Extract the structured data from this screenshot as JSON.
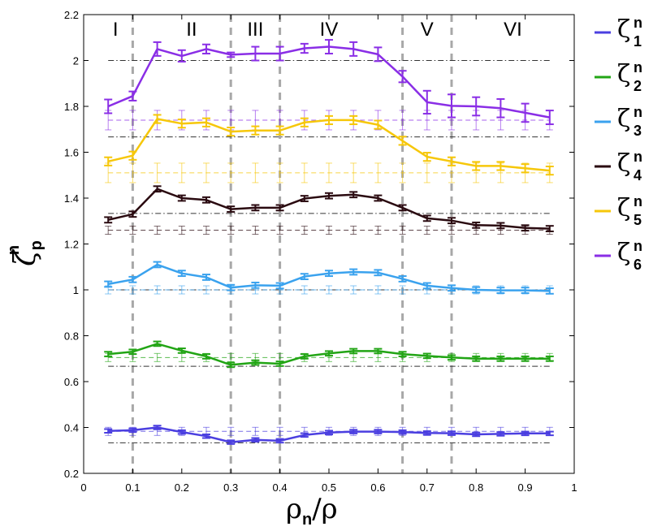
{
  "chart_data": {
    "type": "line",
    "xlabel_main": "ρ",
    "xlabel_sub": "n",
    "xlabel_tail": "/ρ",
    "ylabel_main": "ζ",
    "ylabel_sup": "n",
    "ylabel_sub": "p",
    "xlim": [
      0,
      1
    ],
    "ylim": [
      0.2,
      2.2
    ],
    "x_ticks": [
      0,
      0.1,
      0.2,
      0.3,
      0.4,
      0.5,
      0.6,
      0.7,
      0.8,
      0.9,
      1
    ],
    "x_tick_labels": [
      "0",
      "0.1",
      "0.2",
      "0.3",
      "0.4",
      "0.5",
      "0.6",
      "0.7",
      "0.8",
      "0.9",
      "1"
    ],
    "y_ticks": [
      0.2,
      0.4,
      0.6,
      0.8,
      1.0,
      1.2,
      1.4,
      1.6,
      1.8,
      2.0,
      2.2
    ],
    "y_tick_labels": [
      "0.2",
      "0.4",
      "0.6",
      "0.8",
      "1",
      "1.2",
      "1.4",
      "1.6",
      "1.8",
      "2",
      "2.2"
    ],
    "region_boundaries": [
      0.1,
      0.3,
      0.4,
      0.65,
      0.75
    ],
    "regions": [
      {
        "label": "I",
        "x": 0.065
      },
      {
        "label": "II",
        "x": 0.22
      },
      {
        "label": "III",
        "x": 0.35
      },
      {
        "label": "IV",
        "x": 0.5
      },
      {
        "label": "V",
        "x": 0.7
      },
      {
        "label": "VI",
        "x": 0.875
      }
    ],
    "reference_lines": [
      0.3333,
      0.6667,
      1.0,
      1.3333,
      1.6667,
      2.0
    ],
    "x": [
      0.05,
      0.1,
      0.15,
      0.2,
      0.25,
      0.3,
      0.35,
      0.4,
      0.45,
      0.5,
      0.55,
      0.6,
      0.65,
      0.7,
      0.75,
      0.8,
      0.85,
      0.9,
      0.95
    ],
    "series": [
      {
        "name": "ζ1n",
        "legend_sub": "1",
        "color": "#4b3fe0",
        "values": [
          0.385,
          0.388,
          0.4,
          0.38,
          0.362,
          0.336,
          0.346,
          0.342,
          0.367,
          0.378,
          0.382,
          0.382,
          0.38,
          0.376,
          0.375,
          0.37,
          0.372,
          0.374,
          0.374
        ],
        "errors": [
          0.008,
          0.008,
          0.008,
          0.008,
          0.008,
          0.008,
          0.008,
          0.008,
          0.008,
          0.008,
          0.008,
          0.008,
          0.008,
          0.008,
          0.008,
          0.008,
          0.008,
          0.008,
          0.008
        ],
        "dashed_level": 0.383
      },
      {
        "name": "ζ2n",
        "legend_sub": "2",
        "color": "#22a515",
        "values": [
          0.72,
          0.73,
          0.765,
          0.735,
          0.71,
          0.673,
          0.683,
          0.678,
          0.71,
          0.723,
          0.733,
          0.733,
          0.72,
          0.712,
          0.705,
          0.7,
          0.7,
          0.7,
          0.7
        ],
        "errors": [
          0.01,
          0.01,
          0.01,
          0.01,
          0.01,
          0.01,
          0.01,
          0.01,
          0.01,
          0.01,
          0.01,
          0.01,
          0.01,
          0.01,
          0.01,
          0.01,
          0.01,
          0.01,
          0.01
        ],
        "dashed_level": 0.705
      },
      {
        "name": "ζ3n",
        "legend_sub": "3",
        "color": "#3aa2ee",
        "values": [
          1.025,
          1.045,
          1.11,
          1.072,
          1.055,
          1.01,
          1.02,
          1.018,
          1.058,
          1.072,
          1.078,
          1.075,
          1.048,
          1.018,
          1.008,
          1.0,
          0.998,
          0.998,
          0.995
        ],
        "errors": [
          0.012,
          0.012,
          0.012,
          0.012,
          0.012,
          0.012,
          0.012,
          0.012,
          0.012,
          0.012,
          0.012,
          0.012,
          0.012,
          0.012,
          0.012,
          0.012,
          0.012,
          0.012,
          0.012
        ],
        "dashed_level": 1.0
      },
      {
        "name": "ζ4n",
        "legend_sub": "4",
        "color": "#2a0a10",
        "values": [
          1.305,
          1.33,
          1.44,
          1.4,
          1.392,
          1.352,
          1.358,
          1.358,
          1.398,
          1.41,
          1.415,
          1.4,
          1.358,
          1.312,
          1.302,
          1.282,
          1.28,
          1.27,
          1.267
        ],
        "errors": [
          0.012,
          0.012,
          0.012,
          0.012,
          0.012,
          0.012,
          0.012,
          0.012,
          0.012,
          0.012,
          0.012,
          0.012,
          0.012,
          0.012,
          0.012,
          0.012,
          0.012,
          0.012,
          0.012
        ],
        "dashed_level": 1.26
      },
      {
        "name": "ζ5n",
        "legend_sub": "5",
        "color": "#f6c70a",
        "values": [
          1.56,
          1.585,
          1.745,
          1.725,
          1.73,
          1.69,
          1.695,
          1.695,
          1.73,
          1.74,
          1.74,
          1.72,
          1.65,
          1.58,
          1.56,
          1.54,
          1.54,
          1.53,
          1.52
        ],
        "errors": [
          0.018,
          0.018,
          0.018,
          0.018,
          0.018,
          0.018,
          0.018,
          0.018,
          0.018,
          0.018,
          0.018,
          0.018,
          0.018,
          0.018,
          0.018,
          0.018,
          0.018,
          0.018,
          0.018
        ],
        "dashed_level": 1.51
      },
      {
        "name": "ζ6n",
        "legend_sub": "6",
        "color": "#8a2ee6",
        "values": [
          1.8,
          1.845,
          2.05,
          2.02,
          2.05,
          2.025,
          2.03,
          2.03,
          2.053,
          2.06,
          2.05,
          2.027,
          1.93,
          1.818,
          1.802,
          1.8,
          1.792,
          1.772,
          1.752
        ],
        "errors": [
          0.03,
          0.02,
          0.03,
          0.025,
          0.02,
          0.01,
          0.03,
          0.03,
          0.02,
          0.03,
          0.03,
          0.03,
          0.025,
          0.05,
          0.05,
          0.04,
          0.04,
          0.04,
          0.03
        ],
        "dashed_level": 1.74
      }
    ]
  }
}
